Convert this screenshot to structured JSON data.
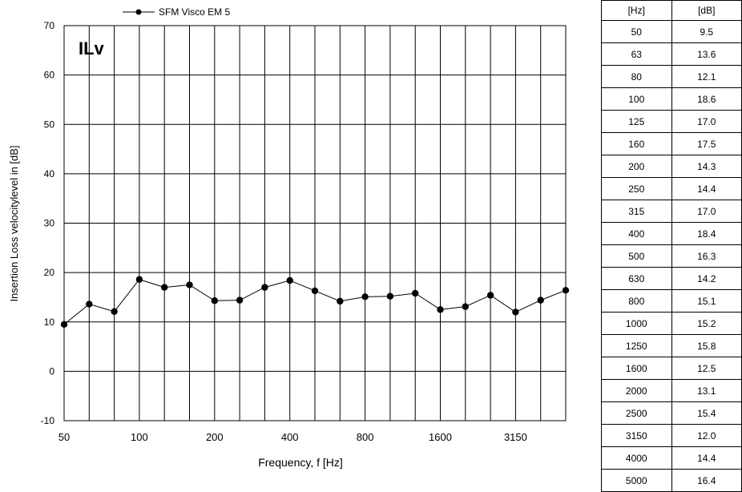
{
  "chart_data": {
    "type": "line",
    "title": "ILv",
    "xlabel": "Frequency, f [Hz]",
    "ylabel": "Insertion Loss velocitylevel  in   [dB]",
    "ylim": [
      -10,
      70
    ],
    "yticks": [
      "-10",
      "0",
      "10",
      "20",
      "30",
      "40",
      "50",
      "60",
      "70"
    ],
    "xtick_labels": [
      "50",
      "100",
      "200",
      "400",
      "800",
      "1600",
      "3150"
    ],
    "grid": true,
    "legend_position": "top-left",
    "x": [
      "50",
      "63",
      "80",
      "100",
      "125",
      "160",
      "200",
      "250",
      "315",
      "400",
      "500",
      "630",
      "800",
      "1000",
      "1250",
      "1600",
      "2000",
      "2500",
      "3150",
      "4000",
      "5000"
    ],
    "series": [
      {
        "name": "SFM Visco EM 5",
        "color": "#000000",
        "marker": "circle",
        "values": [
          9.5,
          13.6,
          12.1,
          18.6,
          17.0,
          17.5,
          14.3,
          14.4,
          17.0,
          18.4,
          16.3,
          14.2,
          15.1,
          15.2,
          15.8,
          12.5,
          13.1,
          15.4,
          12.0,
          14.4,
          16.4
        ]
      }
    ]
  },
  "table": {
    "headers": [
      "[Hz]",
      "[dB]"
    ],
    "rows": [
      [
        "50",
        "9.5"
      ],
      [
        "63",
        "13.6"
      ],
      [
        "80",
        "12.1"
      ],
      [
        "100",
        "18.6"
      ],
      [
        "125",
        "17.0"
      ],
      [
        "160",
        "17.5"
      ],
      [
        "200",
        "14.3"
      ],
      [
        "250",
        "14.4"
      ],
      [
        "315",
        "17.0"
      ],
      [
        "400",
        "18.4"
      ],
      [
        "500",
        "16.3"
      ],
      [
        "630",
        "14.2"
      ],
      [
        "800",
        "15.1"
      ],
      [
        "1000",
        "15.2"
      ],
      [
        "1250",
        "15.8"
      ],
      [
        "1600",
        "12.5"
      ],
      [
        "2000",
        "13.1"
      ],
      [
        "2500",
        "15.4"
      ],
      [
        "3150",
        "12.0"
      ],
      [
        "4000",
        "14.4"
      ],
      [
        "5000",
        "16.4"
      ]
    ]
  }
}
